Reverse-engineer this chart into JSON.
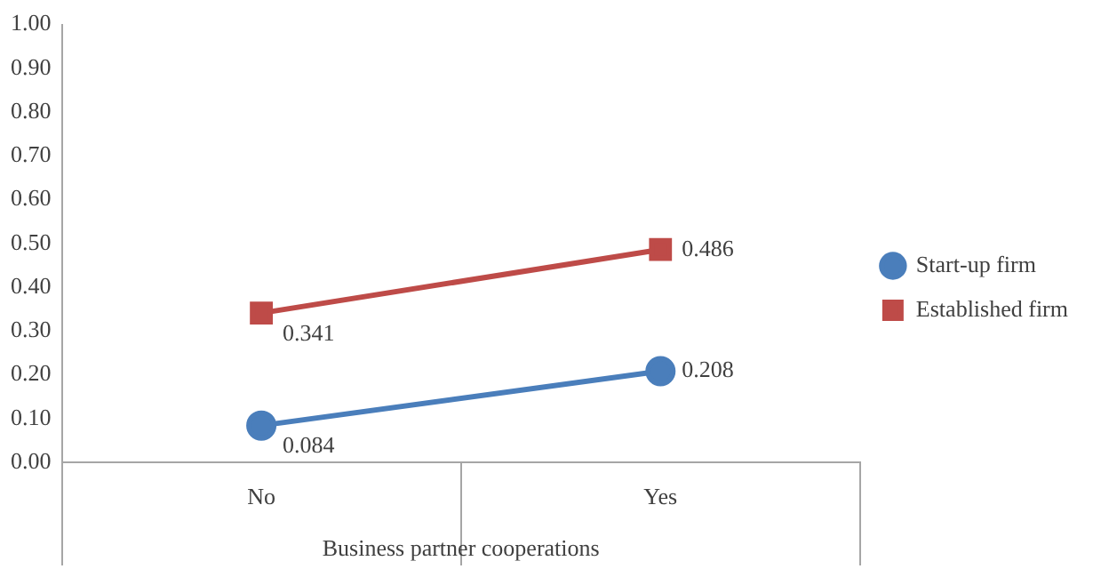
{
  "chart_data": {
    "type": "line",
    "xlabel": "Business partner cooperations",
    "categories": [
      "No",
      "Yes"
    ],
    "series": [
      {
        "name": "Start-up firm",
        "color": "#4a7ebb",
        "marker": "circle",
        "values": [
          0.084,
          0.208
        ]
      },
      {
        "name": "Established firm",
        "color": "#be4b48",
        "marker": "square",
        "values": [
          0.341,
          0.486
        ]
      }
    ],
    "ylim": [
      0,
      1
    ],
    "yticks": [
      {
        "value": 0,
        "label": "0.00"
      },
      {
        "value": 0.1,
        "label": "0.10"
      },
      {
        "value": 0.2,
        "label": "0.20"
      },
      {
        "value": 0.3,
        "label": "0.30"
      },
      {
        "value": 0.4,
        "label": "0.40"
      },
      {
        "value": 0.5,
        "label": "0.50"
      },
      {
        "value": 0.6,
        "label": "0.60"
      },
      {
        "value": 0.7,
        "label": "0.70"
      },
      {
        "value": 0.8,
        "label": "0.80"
      },
      {
        "value": 0.9,
        "label": "0.90"
      },
      {
        "value": 1,
        "label": "1.00"
      }
    ],
    "grid": false,
    "legend": "right",
    "data_labels": true,
    "line_style": "solid"
  }
}
